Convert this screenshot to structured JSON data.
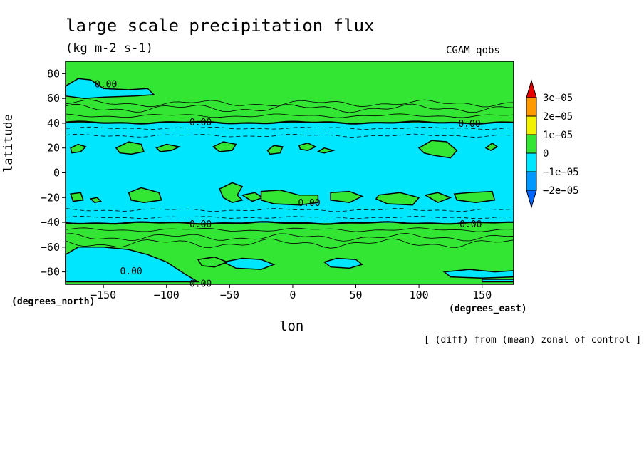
{
  "chart_data": {
    "type": "heatmap",
    "title": "large scale precipitation flux",
    "units": "(kg m-2 s-1)",
    "run_label": "CGAM_qobs",
    "xlabel": "lon",
    "ylabel": "latitude",
    "x_units": "(degrees_east)",
    "y_units": "(degrees_north)",
    "footnote": "[ (diff) from (mean) zonal of control ]",
    "xlim": [
      -180,
      175
    ],
    "ylim": [
      -90,
      90
    ],
    "x_ticks": [
      -150,
      -100,
      -50,
      0,
      50,
      100,
      150
    ],
    "x_tick_labels": [
      "−150",
      "−100",
      "−50",
      "0",
      "50",
      "100",
      "150"
    ],
    "y_ticks": [
      80,
      60,
      40,
      20,
      0,
      -20,
      -40,
      -60,
      -80
    ],
    "y_tick_labels": [
      "80",
      "60",
      "40",
      "20",
      "0",
      "−20",
      "−40",
      "−60",
      "−80"
    ],
    "colorbar": {
      "levels": [
        "3e−05",
        "2e−05",
        "1e−05",
        "0",
        "−1e−05",
        "−2e−05"
      ],
      "colors": {
        "above_3e-05": "#e60000",
        "2e-05_to_3e-05": "#ff9900",
        "1e-05_to_2e-05": "#f2f200",
        "0_to_1e-05": "#33e633",
        "-1e-05_to_0": "#00e6ff",
        "-2e-05_to_-1e-05": "#0099ff",
        "below_-2e-05": "#0066ff"
      }
    },
    "contour_labels": [
      "0.00",
      "0.00",
      "0.00",
      "0.00",
      "0.00",
      "0.00",
      "0.00",
      "0.00"
    ],
    "zonal_bands": [
      {
        "lat_range": [
          62,
          90
        ],
        "sign": "positive"
      },
      {
        "lat_range": [
          40,
          62
        ],
        "sign": "positive"
      },
      {
        "lat_range": [
          -40,
          40
        ],
        "sign": "negative"
      },
      {
        "lat_range": [
          -62,
          -40
        ],
        "sign": "positive"
      },
      {
        "lat_range": [
          -90,
          -62
        ],
        "sign": "mixed"
      }
    ]
  }
}
